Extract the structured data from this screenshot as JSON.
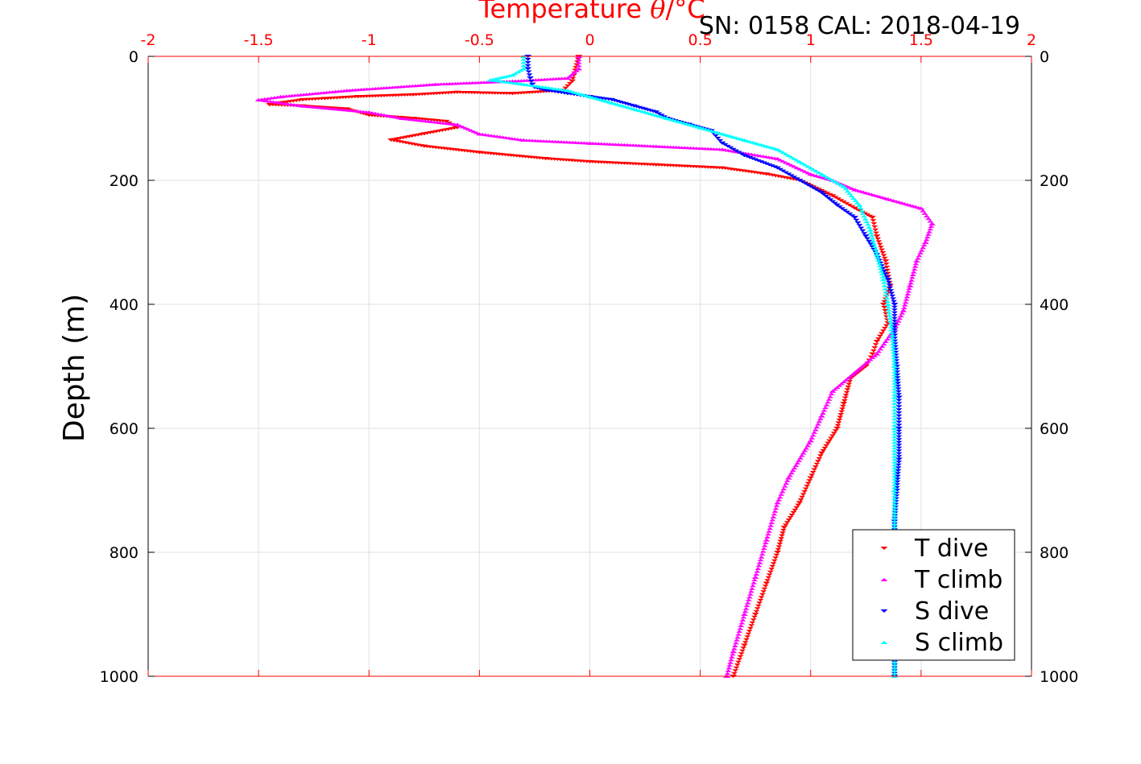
{
  "chart_data": {
    "type": "scatter",
    "title": "Temperature θ/°C",
    "title_text": "Temperature ",
    "title_symbol": "θ",
    "title_unit": "/°C",
    "subtitle": "SN: 0158  CAL: 2018-04-19",
    "xlabel": "Temperature θ/°C",
    "ylabel": "Depth (m)",
    "xlim": [
      -2,
      2
    ],
    "ylim": [
      1000,
      0
    ],
    "y_reversed": true,
    "x_axis_position": "top",
    "grid": true,
    "legend_position": "bottom-right",
    "xticks": [
      -2,
      -1.5,
      -1,
      -0.5,
      0,
      0.5,
      1,
      1.5,
      2
    ],
    "xtick_labels": [
      "-2",
      "-1.5",
      "-1",
      "-0.5",
      "0",
      "0.5",
      "1",
      "1.5",
      "2"
    ],
    "yticks": [
      0,
      200,
      400,
      600,
      800,
      1000
    ],
    "ytick_labels": [
      "0",
      "200",
      "400",
      "600",
      "800",
      "1000"
    ],
    "colors": {
      "axis_x": "#ff0000",
      "axis_y": "#000000",
      "grid": "#e0e0e0",
      "title": "#ff0000"
    },
    "series": [
      {
        "name": "T dive",
        "marker": "triangle-down",
        "color": "#ff0000",
        "x": [
          -0.05,
          -0.08,
          -0.12,
          -0.35,
          -0.6,
          -0.8,
          -1.05,
          -1.2,
          -1.3,
          -1.4,
          -1.45,
          -1.3,
          -1.1,
          -1.0,
          -0.8,
          -0.65,
          -0.6,
          -0.75,
          -0.9,
          -0.75,
          -0.5,
          -0.2,
          0.0,
          0.3,
          0.6,
          0.8,
          0.95,
          1.1,
          1.2,
          1.28,
          1.3,
          1.34,
          1.36,
          1.33,
          1.35,
          1.3,
          1.28,
          1.25,
          1.18,
          1.15,
          1.12,
          1.05,
          1.0,
          0.95,
          0.88,
          0.85,
          0.8,
          0.75,
          0.7,
          0.65
        ],
        "y": [
          0,
          40,
          55,
          60,
          58,
          62,
          65,
          68,
          70,
          75,
          78,
          80,
          85,
          95,
          100,
          105,
          115,
          125,
          135,
          145,
          155,
          165,
          170,
          175,
          180,
          190,
          200,
          225,
          245,
          260,
          290,
          330,
          370,
          400,
          430,
          460,
          480,
          500,
          520,
          560,
          600,
          640,
          680,
          720,
          760,
          800,
          850,
          900,
          950,
          1000
        ]
      },
      {
        "name": "T climb",
        "marker": "triangle-up",
        "color": "#ff00ff",
        "x": [
          -0.05,
          -0.05,
          -0.1,
          -0.35,
          -0.7,
          -1.1,
          -1.4,
          -1.5,
          -1.3,
          -1.0,
          -0.85,
          -0.6,
          -0.5,
          -0.3,
          0.0,
          0.3,
          0.6,
          0.85,
          1.0,
          1.1,
          1.2,
          1.35,
          1.5,
          1.55,
          1.52,
          1.48,
          1.45,
          1.42,
          1.38,
          1.3,
          1.2,
          1.1,
          1.05,
          1.0,
          0.9,
          0.85,
          0.8,
          0.75,
          0.7,
          0.65,
          0.62
        ],
        "y": [
          0,
          20,
          35,
          40,
          45,
          55,
          65,
          70,
          80,
          90,
          100,
          110,
          125,
          135,
          140,
          145,
          150,
          165,
          190,
          200,
          215,
          230,
          245,
          270,
          300,
          330,
          370,
          410,
          440,
          480,
          510,
          540,
          580,
          620,
          680,
          720,
          780,
          840,
          900,
          960,
          1000
        ]
      },
      {
        "name": "S dive",
        "marker": "triangle-down",
        "color": "#0000ff",
        "x": [
          -0.28,
          -0.28,
          -0.27,
          -0.26,
          -0.25,
          -0.2,
          -0.1,
          0.0,
          0.1,
          0.2,
          0.3,
          0.35,
          0.45,
          0.55,
          0.6,
          0.7,
          0.85,
          0.95,
          1.05,
          1.12,
          1.2,
          1.25,
          1.3,
          1.35,
          1.38,
          1.38,
          1.39,
          1.4,
          1.4,
          1.4,
          1.39,
          1.38,
          1.38,
          1.38,
          1.38,
          1.38
        ],
        "y": [
          0,
          20,
          35,
          45,
          50,
          55,
          60,
          65,
          70,
          80,
          90,
          100,
          110,
          120,
          140,
          160,
          180,
          200,
          220,
          240,
          260,
          290,
          320,
          360,
          400,
          450,
          500,
          550,
          600,
          650,
          700,
          750,
          800,
          850,
          900,
          1000
        ]
      },
      {
        "name": "S climb",
        "marker": "triangle-up",
        "color": "#00ffff",
        "x": [
          -0.3,
          -0.3,
          -0.35,
          -0.45,
          -0.3,
          -0.2,
          -0.1,
          0.0,
          0.1,
          0.2,
          0.35,
          0.5,
          0.7,
          0.85,
          0.95,
          1.05,
          1.15,
          1.22,
          1.27,
          1.3,
          1.33,
          1.35,
          1.37,
          1.38,
          1.38,
          1.38,
          1.38,
          1.38,
          1.38,
          1.38,
          1.38
        ],
        "y": [
          0,
          20,
          30,
          38,
          45,
          50,
          55,
          65,
          75,
          85,
          100,
          115,
          135,
          150,
          170,
          190,
          210,
          240,
          280,
          320,
          360,
          400,
          450,
          500,
          550,
          600,
          700,
          800,
          900,
          950,
          1000
        ]
      }
    ]
  }
}
